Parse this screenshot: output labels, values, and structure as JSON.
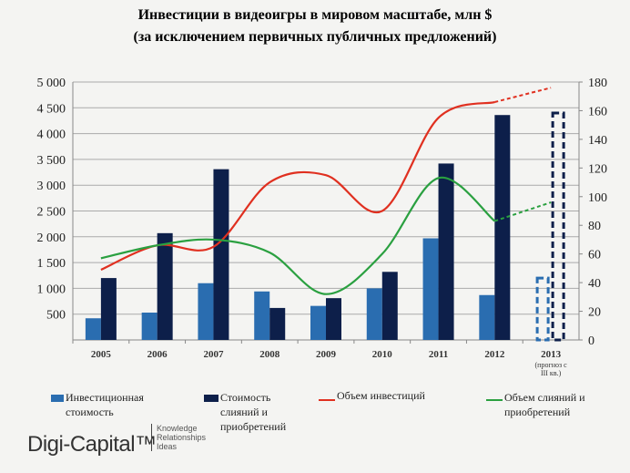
{
  "chart_data": {
    "type": "bar",
    "title": "Инвестиции в видеоигры в мировом масштабе, млн $",
    "subtitle": "(за исключением первичных публичных предложений)",
    "categories": [
      "2005",
      "2006",
      "2007",
      "2008",
      "2009",
      "2010",
      "2011",
      "2012",
      "2013"
    ],
    "category_note": "(прогноз с III кв.)",
    "y_left": {
      "min": 0,
      "max": 5000,
      "ticks": [
        "",
        "500",
        "1 000",
        "1 500",
        "2 000",
        "2 500",
        "3 000",
        "3 500",
        "4 000",
        "4 500",
        "5 000"
      ]
    },
    "y_right": {
      "min": 0,
      "max": 180,
      "ticks": [
        "0",
        "20",
        "40",
        "60",
        "80",
        "100",
        "120",
        "140",
        "160",
        "180"
      ]
    },
    "series": [
      {
        "name": "Инвестиционная стоимость",
        "type": "bar",
        "axis": "left",
        "color": "#2a6db0",
        "values": [
          420,
          530,
          1100,
          940,
          660,
          1000,
          1970,
          870,
          1200
        ],
        "forecast_last": true
      },
      {
        "name": "Стоимость слияний и приобретений",
        "type": "bar",
        "axis": "left",
        "color": "#0d1f4a",
        "values": [
          1200,
          2070,
          3310,
          620,
          810,
          1320,
          3420,
          4360,
          4400
        ],
        "forecast_last": true
      },
      {
        "name": "Объем инвестиций",
        "type": "line",
        "axis": "right",
        "color": "#e03020",
        "values": [
          49,
          66,
          65,
          110,
          115,
          90,
          155,
          166,
          176
        ],
        "forecast_last": true
      },
      {
        "name": "Объем слияний и приобретений",
        "type": "line",
        "axis": "right",
        "color": "#2aa040",
        "values": [
          57,
          66,
          70,
          61,
          32,
          60,
          113,
          83,
          96
        ],
        "forecast_last": true
      }
    ],
    "grid": true,
    "legend_placement": "bottom"
  },
  "legend": {
    "s0": "Инвестиционная стоимость",
    "s1": "Стоимость слияний и приобретений",
    "s2": "Объем инвестиций",
    "s3": "Объем слияний и приобретений"
  },
  "logo": {
    "name": "Digi-Capital™",
    "tagline": [
      "Knowledge",
      "Relationships",
      "Ideas"
    ]
  }
}
